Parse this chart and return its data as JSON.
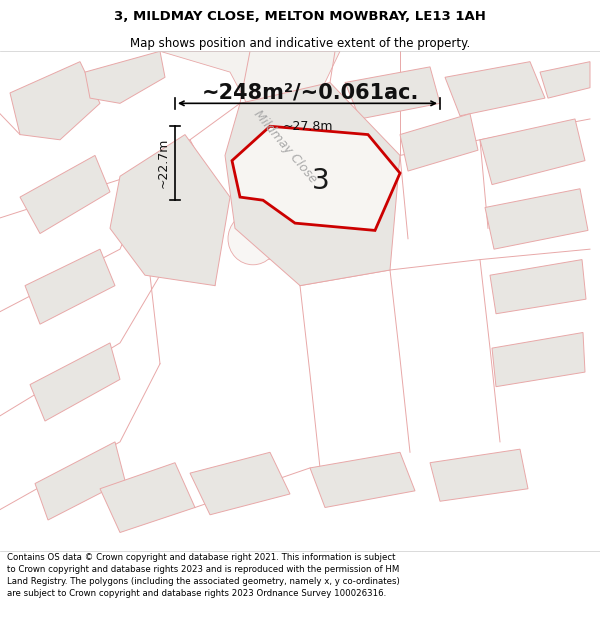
{
  "title_line1": "3, MILDMAY CLOSE, MELTON MOWBRAY, LE13 1AH",
  "title_line2": "Map shows position and indicative extent of the property.",
  "area_text": "~248m²/~0.061ac.",
  "street_label": "Mildmay Close",
  "property_label": "3",
  "dim_width": "~27.8m",
  "dim_height": "~22.7m",
  "footer_text": "Contains OS data © Crown copyright and database right 2021. This information is subject to Crown copyright and database rights 2023 and is reproduced with the permission of HM Land Registry. The polygons (including the associated geometry, namely x, y co-ordinates) are subject to Crown copyright and database rights 2023 Ordnance Survey 100026316.",
  "map_bg": "#f7f5f2",
  "property_fill": "#f7f5f2",
  "property_edge": "#cc0000",
  "neighbor_fill": "#e8e6e2",
  "neighbor_edge": "#e8a8a8",
  "road_edge": "#e8a8a8",
  "road_fill": "#f0ede8",
  "title_bg": "#ffffff",
  "footer_bg": "#ffffff",
  "plot_line_color": "#e8a8a8"
}
